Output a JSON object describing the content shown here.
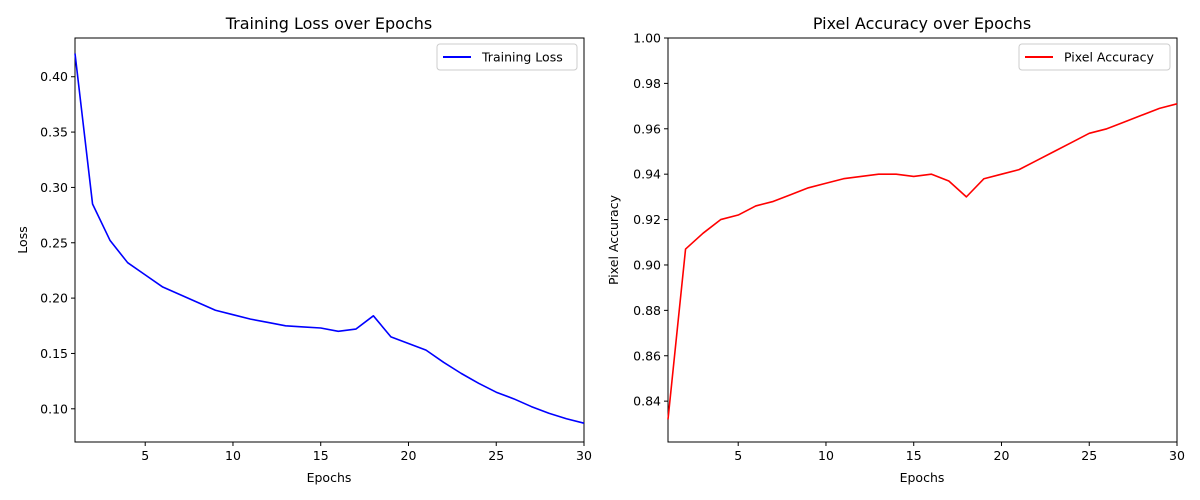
{
  "chart_data": [
    {
      "type": "line",
      "title": "Training Loss over Epochs",
      "xlabel": "Epochs",
      "ylabel": "Loss",
      "xlim": [
        1,
        30
      ],
      "ylim": [
        0.07,
        0.435
      ],
      "xticks": [
        5,
        10,
        15,
        20,
        25,
        30
      ],
      "yticks": [
        0.1,
        0.15,
        0.2,
        0.25,
        0.3,
        0.35,
        0.4
      ],
      "ytick_labels": [
        "0.10",
        "0.15",
        "0.20",
        "0.25",
        "0.30",
        "0.35",
        "0.40"
      ],
      "legend": "top-right",
      "grid": false,
      "series": [
        {
          "name": "Training Loss",
          "color": "#0000ff",
          "x": [
            1,
            2,
            3,
            4,
            5,
            6,
            7,
            8,
            9,
            10,
            11,
            12,
            13,
            14,
            15,
            16,
            17,
            18,
            19,
            20,
            21,
            22,
            23,
            24,
            25,
            26,
            27,
            28,
            29,
            30
          ],
          "values": [
            0.421,
            0.285,
            0.252,
            0.232,
            0.221,
            0.21,
            0.203,
            0.196,
            0.189,
            0.185,
            0.181,
            0.178,
            0.175,
            0.174,
            0.173,
            0.17,
            0.172,
            0.184,
            0.165,
            0.159,
            0.153,
            0.142,
            0.132,
            0.123,
            0.115,
            0.109,
            0.102,
            0.096,
            0.091,
            0.087
          ]
        }
      ]
    },
    {
      "type": "line",
      "title": "Pixel Accuracy over Epochs",
      "xlabel": "Epochs",
      "ylabel": "Pixel Accuracy",
      "xlim": [
        1,
        30
      ],
      "ylim": [
        0.822,
        1.0
      ],
      "xticks": [
        5,
        10,
        15,
        20,
        25,
        30
      ],
      "yticks": [
        0.84,
        0.86,
        0.88,
        0.9,
        0.92,
        0.94,
        0.96,
        0.98,
        1.0
      ],
      "ytick_labels": [
        "0.84",
        "0.86",
        "0.88",
        "0.90",
        "0.92",
        "0.94",
        "0.96",
        "0.98",
        "1.00"
      ],
      "legend": "top-right",
      "grid": false,
      "series": [
        {
          "name": "Pixel Accuracy",
          "color": "#ff0000",
          "x": [
            1,
            2,
            3,
            4,
            5,
            6,
            7,
            8,
            9,
            10,
            11,
            12,
            13,
            14,
            15,
            16,
            17,
            18,
            19,
            20,
            21,
            22,
            23,
            24,
            25,
            26,
            27,
            28,
            29,
            30
          ],
          "values": [
            0.832,
            0.907,
            0.914,
            0.92,
            0.922,
            0.926,
            0.928,
            0.931,
            0.934,
            0.936,
            0.938,
            0.939,
            0.94,
            0.94,
            0.939,
            0.94,
            0.937,
            0.93,
            0.938,
            0.94,
            0.942,
            0.946,
            0.95,
            0.954,
            0.958,
            0.96,
            0.963,
            0.966,
            0.969,
            0.971
          ]
        }
      ]
    }
  ]
}
